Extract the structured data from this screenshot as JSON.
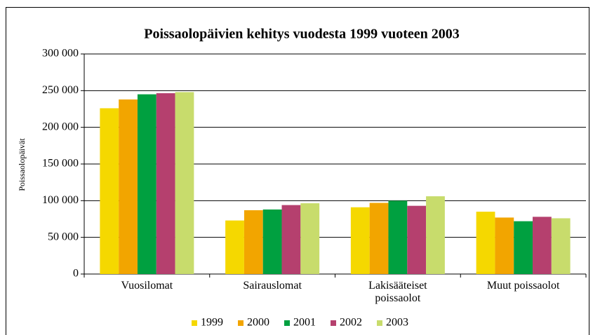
{
  "chart_data": {
    "type": "bar",
    "title": "Poissaolopäivien kehitys vuodesta 1999 vuoteen 2003",
    "y_label": "Poissaolopäivät",
    "categories": [
      "Vuosilomat",
      "Sairauslomat",
      "Lakisääteiset poissaolot",
      "Muut poissaolot"
    ],
    "series": [
      {
        "name": "1999",
        "color": "#f5d800",
        "values": [
          226000,
          73000,
          91000,
          85000
        ]
      },
      {
        "name": "2000",
        "color": "#f2a500",
        "values": [
          238000,
          87000,
          97000,
          77000
        ]
      },
      {
        "name": "2001",
        "color": "#00a040",
        "values": [
          245000,
          88000,
          100000,
          72000
        ]
      },
      {
        "name": "2002",
        "color": "#b5406e",
        "values": [
          246500,
          94000,
          93000,
          78000
        ]
      },
      {
        "name": "2003",
        "color": "#c8dc6c",
        "values": [
          248000,
          96500,
          106000,
          76000
        ]
      }
    ],
    "ylim": [
      0,
      300000
    ],
    "yticks": [
      0,
      {
        "value": 50000,
        "label": "50 000"
      },
      {
        "value": 100000,
        "label": "100 000"
      },
      {
        "value": 150000,
        "label": "150 000"
      },
      {
        "value": 200000,
        "label": "200 000"
      },
      {
        "value": 250000,
        "label": "250 000"
      },
      {
        "value": 300000,
        "label": "300 000"
      }
    ],
    "grid": true,
    "legend": "bottom"
  }
}
